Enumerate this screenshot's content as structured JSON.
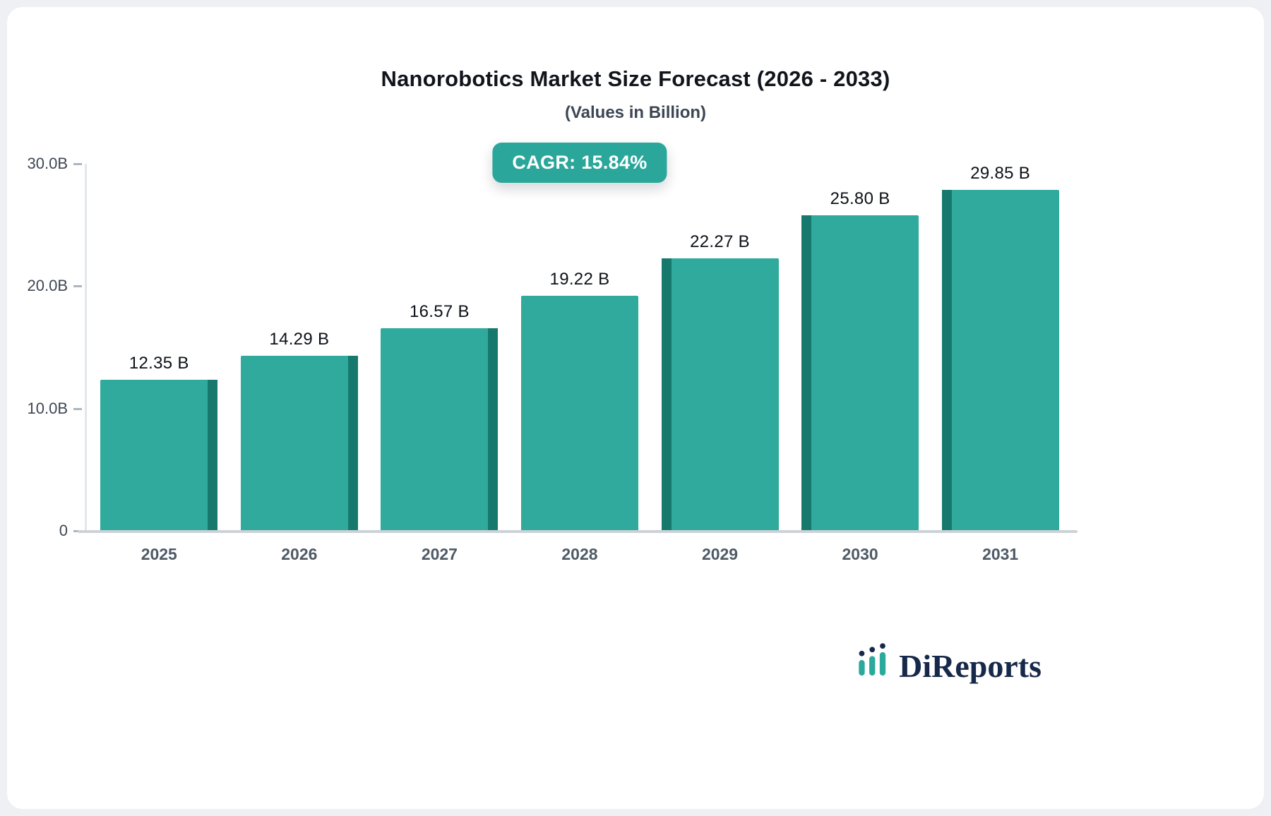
{
  "header": {
    "title": "Nanorobotics Market Size Forecast (2026 - 2033)",
    "subtitle": "(Values in Billion)"
  },
  "cagr_badge": {
    "label": "CAGR: 15.84%",
    "background": "#2aa79a"
  },
  "chart_data": {
    "type": "bar",
    "categories": [
      "2025",
      "2026",
      "2027",
      "2028",
      "2029",
      "2030",
      "2031"
    ],
    "values": [
      12.35,
      14.29,
      16.57,
      19.22,
      22.27,
      25.8,
      29.85
    ],
    "value_labels": [
      "12.35 B",
      "14.29 B",
      "16.57 B",
      "19.22 B",
      "22.27 B",
      "25.80 B",
      "29.85 B"
    ],
    "title": "Nanorobotics Market Size Forecast (2026 - 2033)",
    "subtitle": "(Values in Billion)",
    "xlabel": "",
    "ylabel": "",
    "ylim": [
      0,
      30
    ],
    "yticks": [
      30,
      20,
      10,
      0
    ],
    "ytick_labels": [
      "30.0B",
      "20.0B",
      "10.0B",
      "0"
    ],
    "grid": false,
    "legend": false,
    "bar_color": "#2faa9d",
    "bar_side_color": "#17796e",
    "effect": "pseudo-3d side shading toward chart center"
  },
  "logo": {
    "text": "DiReports",
    "icon": "bar-chart-icon",
    "text_color": "#17294a",
    "icon_color": "#2ba99c"
  },
  "colors": {
    "page_background": "#eef0f3",
    "card_background": "#ffffff",
    "axis_line": "#ccd2d7",
    "y_axis_line": "#e3e6ea",
    "label_text": "#3d4752",
    "category_text": "#4e5a66",
    "value_text": "#0d1117"
  }
}
